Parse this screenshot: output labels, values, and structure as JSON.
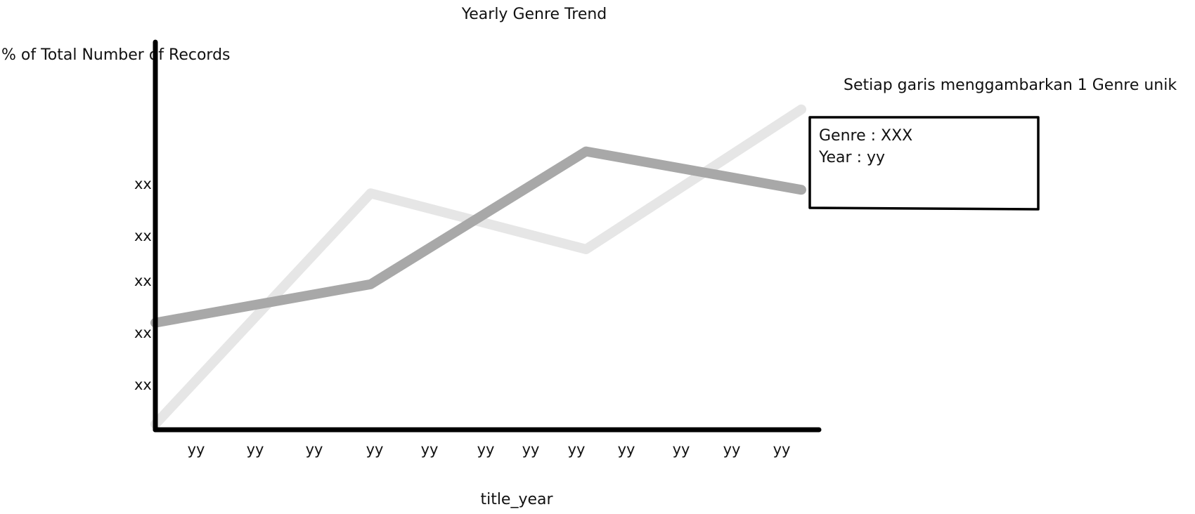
{
  "chart_data": {
    "type": "line",
    "title": "Yearly Genre Trend",
    "ylabel": "% of Total Number of Records",
    "xlabel": "title_year",
    "x_ticks": [
      "yy",
      "yy",
      "yy",
      "yy",
      "yy",
      "yy",
      "yy",
      "yy",
      "yy",
      "yy",
      "yy",
      "yy"
    ],
    "y_ticks": [
      "xx",
      "xx",
      "xx",
      "xx",
      "xx"
    ],
    "series": [
      {
        "color": "#e6e6e6",
        "points": [
          {
            "x": 0,
            "y": 0.0
          },
          {
            "x": 1,
            "y": 0.66
          },
          {
            "x": 2,
            "y": 0.5
          },
          {
            "x": 3,
            "y": 0.9
          }
        ]
      },
      {
        "color": "#a8a8a8",
        "points": [
          {
            "x": 0,
            "y": 0.29
          },
          {
            "x": 1,
            "y": 0.4
          },
          {
            "x": 2,
            "y": 0.78
          },
          {
            "x": 3,
            "y": 0.67
          }
        ]
      }
    ],
    "x_domain": [
      0,
      3
    ],
    "y_domain": [
      0,
      1
    ],
    "grid": false,
    "legend": "none",
    "annotation": "Setiap garis menggambarkan 1 Genre unik",
    "tooltip": {
      "genre_line": "Genre : XXX",
      "year_line": "Year : yy"
    }
  },
  "colors": {
    "axis": "#000000",
    "text": "#111111"
  }
}
